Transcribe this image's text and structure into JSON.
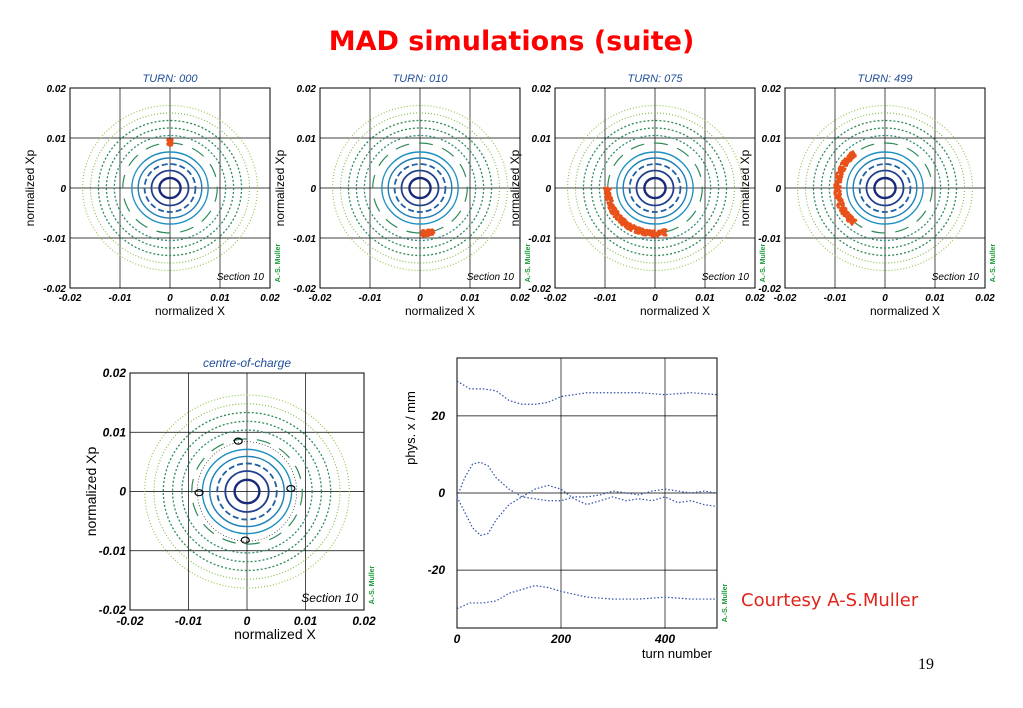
{
  "slide": {
    "title": "MAD simulations (suite)",
    "courtesy": "Courtesy A-S.Muller",
    "page_number": "19"
  },
  "colors": {
    "title": "#ff0000",
    "bunch": "#e8521a",
    "outer_ring": "#8cc63f",
    "mid_ring": "#2e8b57",
    "inner_ring": "#1e90c0",
    "core_ring": "#1a2a7a",
    "trace": "#2b4fa8",
    "plot_title": "#1f4e9a",
    "credit": "#1a9a3a"
  },
  "chart_data": [
    {
      "type": "scatter",
      "title": "TURN: 000",
      "xlabel": "normalized X",
      "ylabel": "normalized Xp",
      "xlim": [
        -0.02,
        0.02
      ],
      "ylim": [
        -0.02,
        0.02
      ],
      "xticks": [
        "-0.02",
        "-0.01",
        "0",
        "0.01",
        "0.02"
      ],
      "yticks": [
        "0.02",
        "0.01",
        "0",
        "-0.01",
        "-0.02"
      ],
      "annotation": "Section 10",
      "credit": "A.-S. Muller",
      "grid": true,
      "bunch": {
        "arc_start_deg": 87,
        "arc_end_deg": 93,
        "radius": 0.0091
      }
    },
    {
      "type": "scatter",
      "title": "TURN: 010",
      "xlabel": "normalized X",
      "ylabel": "normalized Xp",
      "xlim": [
        -0.02,
        0.02
      ],
      "ylim": [
        -0.02,
        0.02
      ],
      "xticks": [
        "-0.02",
        "-0.01",
        "0",
        "0.01",
        "0.02"
      ],
      "yticks": [
        "0.02",
        "0.01",
        "0",
        "-0.01",
        "-0.02"
      ],
      "annotation": "Section 10",
      "credit": "A.-S. Muller",
      "grid": true,
      "bunch": {
        "arc_start_deg": 272,
        "arc_end_deg": 288,
        "radius": 0.0091
      }
    },
    {
      "type": "scatter",
      "title": "TURN: 075",
      "xlabel": "normalized X",
      "ylabel": "normalized Xp",
      "xlim": [
        -0.02,
        0.02
      ],
      "ylim": [
        -0.02,
        0.02
      ],
      "xticks": [
        "-0.02",
        "-0.01",
        "0",
        "0.01",
        "0.02"
      ],
      "yticks": [
        "0.02",
        "0.01",
        "0",
        "-0.01",
        "-0.02"
      ],
      "annotation": "Section 10",
      "credit": "A.-S. Muller",
      "grid": true,
      "bunch": {
        "arc_start_deg": 180,
        "arc_end_deg": 285,
        "radius": 0.0091
      }
    },
    {
      "type": "scatter",
      "title": "TURN: 499",
      "xlabel": "normalized X",
      "ylabel": "normalized Xp",
      "xlim": [
        -0.02,
        0.02
      ],
      "ylim": [
        -0.02,
        0.02
      ],
      "xticks": [
        "-0.02",
        "-0.01",
        "0",
        "0.01",
        "0.02"
      ],
      "yticks": [
        "0.02",
        "0.01",
        "0",
        "-0.01",
        "-0.02"
      ],
      "annotation": "Section 10",
      "credit": "A.-S. Muller",
      "grid": true,
      "bunch": {
        "arc_start_deg": 130,
        "arc_end_deg": 230,
        "radius": 0.0091
      }
    },
    {
      "type": "scatter",
      "title": "centre-of-charge",
      "xlabel": "normalized X",
      "ylabel": "normalized Xp",
      "xlim": [
        -0.02,
        0.02
      ],
      "ylim": [
        -0.02,
        0.02
      ],
      "xticks": [
        "-0.02",
        "-0.01",
        "0",
        "0.01",
        "0.02"
      ],
      "yticks": [
        "0.02",
        "0.01",
        "0",
        "-0.01",
        "-0.02"
      ],
      "annotation": "Section 10",
      "credit": "A.-S. Muller",
      "grid": true,
      "centroids": [
        {
          "x": -0.0015,
          "y": 0.0085
        },
        {
          "x": 0.0075,
          "y": 0.0005
        },
        {
          "x": -0.0003,
          "y": -0.0082
        },
        {
          "x": -0.0082,
          "y": -0.0002
        }
      ]
    },
    {
      "type": "line",
      "title": "",
      "xlabel": "turn number",
      "ylabel": "phys. x / mm",
      "xlim": [
        0,
        500
      ],
      "ylim": [
        -35,
        35
      ],
      "xticks": [
        "0",
        "200",
        "400"
      ],
      "yticks": [
        "20",
        "0",
        "-20"
      ],
      "credit": "A.-S. Muller",
      "grid": true,
      "series": [
        {
          "x": [
            0,
            25,
            50,
            75,
            100,
            125,
            150,
            175,
            200,
            250,
            300,
            350,
            400,
            450,
            500
          ],
          "y": [
            29,
            27,
            27,
            26.5,
            24,
            23,
            23,
            23.5,
            25,
            26,
            26,
            26,
            25.5,
            26,
            25.5
          ]
        },
        {
          "x": [
            0,
            15,
            30,
            45,
            60,
            75,
            100,
            125,
            150,
            175,
            200,
            225,
            250,
            275,
            300,
            325,
            350,
            375,
            400,
            425,
            450,
            475,
            500
          ],
          "y": [
            -1,
            4,
            7.5,
            8,
            7,
            4,
            1,
            -1,
            -1.5,
            -2,
            -2,
            -1,
            -1,
            -0.5,
            0.5,
            0,
            -0.5,
            0.5,
            1,
            0.5,
            0,
            0.5,
            0
          ]
        },
        {
          "x": [
            0,
            15,
            30,
            45,
            60,
            75,
            100,
            125,
            150,
            175,
            200,
            225,
            250,
            275,
            300,
            325,
            350,
            375,
            400,
            425,
            450,
            475,
            500
          ],
          "y": [
            -1,
            -5,
            -9,
            -11,
            -10.5,
            -7,
            -3,
            -1,
            1,
            2,
            1,
            -1.5,
            -3,
            -2,
            -1,
            -2,
            -1.5,
            -2,
            -1,
            -2.5,
            -2,
            -3,
            -3.5
          ]
        },
        {
          "x": [
            0,
            25,
            50,
            75,
            100,
            125,
            150,
            175,
            200,
            250,
            300,
            350,
            400,
            450,
            500
          ],
          "y": [
            -30,
            -28.5,
            -28.5,
            -28,
            -26,
            -25,
            -24,
            -24.5,
            -25.5,
            -27,
            -27.5,
            -27.5,
            -27,
            -27.5,
            -27.5
          ]
        }
      ]
    }
  ]
}
